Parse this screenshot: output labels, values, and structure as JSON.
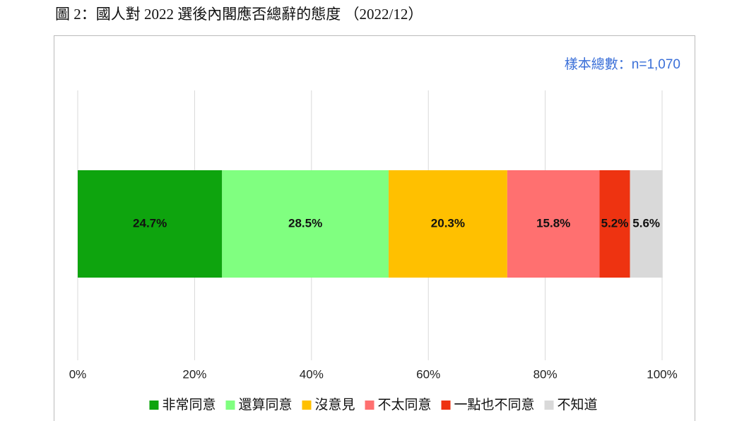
{
  "chart_data": {
    "type": "stacked-bar-horizontal",
    "title": "圖 2：國人對 2022 選後內閣應否總辭的態度 （2022/12）",
    "annotation": "樣本總數：n=1,070",
    "series": [
      {
        "name": "非常同意",
        "color": "#0ea40e",
        "values": [
          24.7
        ],
        "value_labels": [
          "24.7%"
        ]
      },
      {
        "name": "還算同意",
        "color": "#80ff80",
        "values": [
          28.5
        ],
        "value_labels": [
          "28.5%"
        ]
      },
      {
        "name": "沒意見",
        "color": "#ffc000",
        "values": [
          20.3
        ],
        "value_labels": [
          "20.3%"
        ]
      },
      {
        "name": "不太同意",
        "color": "#ff7070",
        "values": [
          15.8
        ],
        "value_labels": [
          "15.8%"
        ]
      },
      {
        "name": "一點也不同意",
        "color": "#ee3311",
        "values": [
          5.2
        ],
        "value_labels": [
          "5.2%"
        ]
      },
      {
        "name": "不知道",
        "color": "#d9d9d9",
        "values": [
          5.6
        ],
        "value_labels": [
          "5.6%"
        ]
      }
    ],
    "xlim": [
      0,
      100
    ],
    "xticks": [
      {
        "value": 0,
        "label": "0%"
      },
      {
        "value": 20,
        "label": "20%"
      },
      {
        "value": 40,
        "label": "40%"
      },
      {
        "value": 60,
        "label": "60%"
      },
      {
        "value": 80,
        "label": "80%"
      },
      {
        "value": 100,
        "label": "100%"
      }
    ],
    "grid": true,
    "legend": "bottom"
  }
}
